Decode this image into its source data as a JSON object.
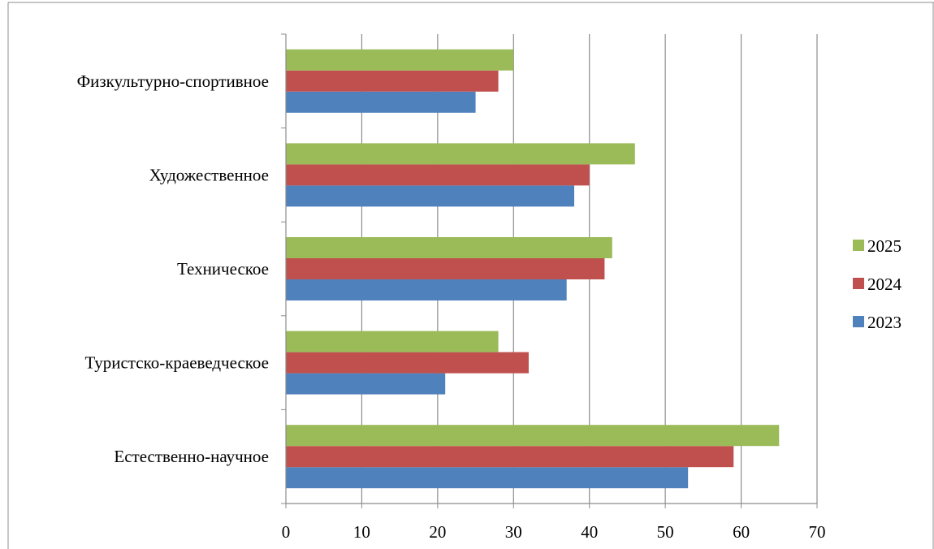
{
  "chart_data": {
    "type": "bar",
    "orientation": "horizontal",
    "title": "",
    "xlabel": "",
    "ylabel": "",
    "categories": [
      "Естественно-научное",
      "Туристско-краеведческое",
      "Техническое",
      "Художественное",
      "Физкультурно-спортивное"
    ],
    "series": [
      {
        "name": "2023",
        "color": "#4F81BD",
        "values": [
          53,
          21,
          37,
          38,
          25
        ]
      },
      {
        "name": "2024",
        "color": "#C0504D",
        "values": [
          59,
          32,
          42,
          40,
          28
        ]
      },
      {
        "name": "2025",
        "color": "#9BBB59",
        "values": [
          65,
          28,
          43,
          46,
          30
        ]
      }
    ],
    "xlim": [
      0,
      70
    ],
    "xticks": [
      "0",
      "10",
      "20",
      "30",
      "40",
      "50",
      "60",
      "70"
    ],
    "grid": "vertical",
    "legend_position": "right"
  }
}
